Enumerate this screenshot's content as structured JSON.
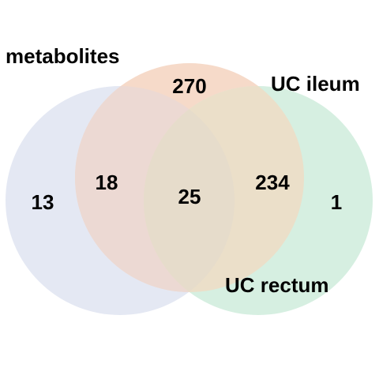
{
  "sets": [
    {
      "key": "metabolites",
      "label": "metabolites",
      "color": "#e4e8f3"
    },
    {
      "key": "ileum",
      "label": "UC ileum",
      "color": "#f6dac9"
    },
    {
      "key": "rectum",
      "label": "UC rectum",
      "color": "#d6efe1"
    }
  ],
  "regions": {
    "metabolites_only": "13",
    "metabolites_ileum": "18",
    "ileum_only": "270",
    "all_three": "25",
    "ileum_rectum": "234",
    "rectum_only": "1"
  },
  "colors": {
    "metabolites": "#e4e8f3",
    "ileum": "#f6dac9",
    "rectum": "#d6efe1",
    "metabolites_ileum_overlap": "#ecd9d3",
    "ileum_rectum_overlap": "#ebdfc9",
    "all_three_overlap": "#e6dccb",
    "metabolites_rectum_overlap": "#d9e5e0",
    "text": "#000000"
  }
}
